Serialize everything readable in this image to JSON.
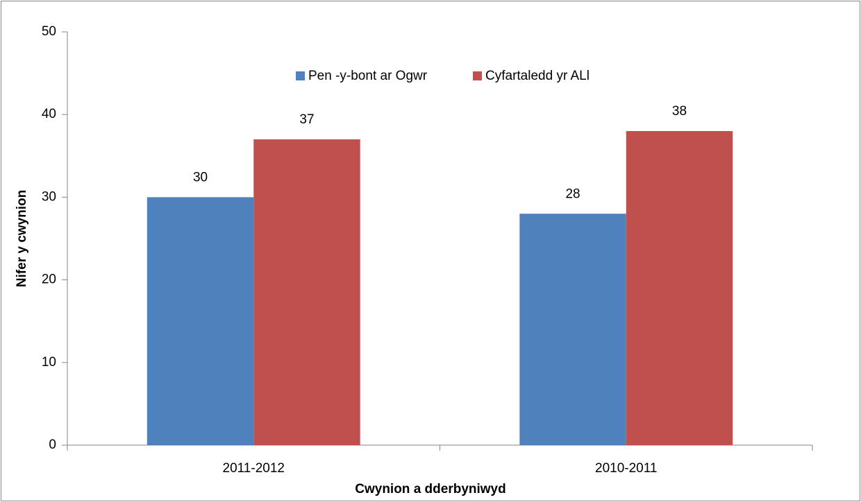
{
  "chart_data": {
    "type": "bar",
    "categories": [
      "2011-2012",
      "2010-2011"
    ],
    "series": [
      {
        "name": "Pen -y-bont ar Ogwr",
        "color": "#4f81bd",
        "values": [
          30,
          28
        ]
      },
      {
        "name": "Cyfartaledd yr ALl",
        "color": "#c0504d",
        "values": [
          37,
          38
        ]
      }
    ],
    "xlabel": "Cwynion a dderbyniwyd",
    "ylabel": "Nifer y cwynion",
    "ylim": [
      0,
      50
    ],
    "yticks": [
      0,
      10,
      20,
      30,
      40,
      50
    ],
    "grid": false,
    "legend": "top"
  }
}
